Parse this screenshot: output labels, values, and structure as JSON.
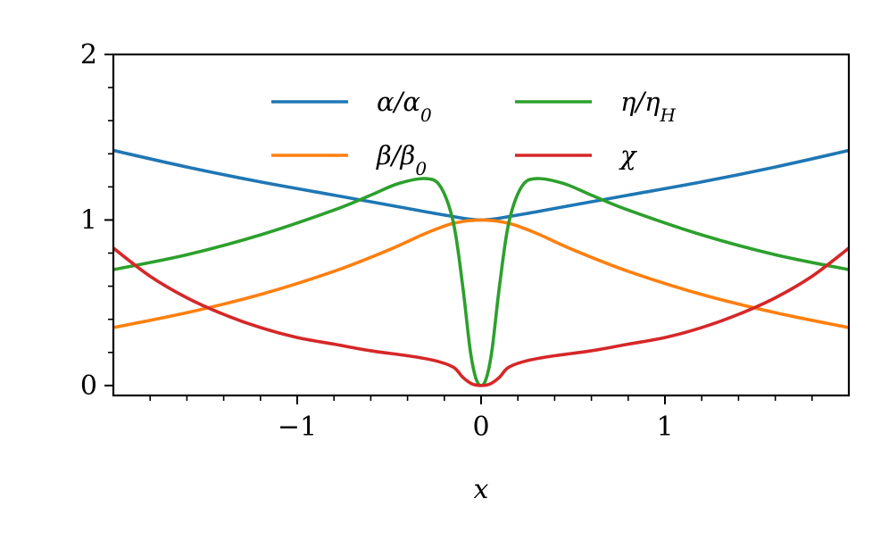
{
  "chart_data": {
    "type": "line",
    "xlabel": "x",
    "ylabel": "",
    "xlim": [
      -2,
      2
    ],
    "ylim": [
      -0.06,
      2
    ],
    "x_ticks": [
      -1,
      0,
      1
    ],
    "x_tick_labels": [
      "−1",
      "0",
      "1"
    ],
    "y_ticks": [
      0,
      1,
      2
    ],
    "y_tick_labels": [
      "0",
      "1",
      "2"
    ],
    "grid": false,
    "legend_position": "upper-center",
    "legend_columns": 2,
    "series": [
      {
        "name": "α/α0",
        "label_html": "α/α<tspan baseline-shift='sub' font-size='20'>0</tspan>",
        "color": "#1f77b4",
        "x": [
          -2.0,
          -1.6,
          -1.2,
          -0.8,
          -0.6,
          -0.4,
          -0.2,
          0.0,
          0.2,
          0.4,
          0.6,
          0.8,
          1.2,
          1.6,
          2.0
        ],
        "y": [
          1.42,
          1.32,
          1.23,
          1.15,
          1.11,
          1.07,
          1.03,
          1.0,
          1.03,
          1.07,
          1.11,
          1.15,
          1.23,
          1.32,
          1.42
        ]
      },
      {
        "name": "β/β0",
        "label_html": "β/β<tspan baseline-shift='sub' font-size='20'>0</tspan>",
        "color": "#ff7f0e",
        "x": [
          -2.0,
          -1.6,
          -1.2,
          -0.8,
          -0.5,
          -0.3,
          -0.15,
          0.0,
          0.15,
          0.3,
          0.5,
          0.8,
          1.2,
          1.6,
          2.0
        ],
        "y": [
          0.35,
          0.44,
          0.55,
          0.69,
          0.82,
          0.92,
          0.98,
          1.0,
          0.98,
          0.92,
          0.82,
          0.69,
          0.55,
          0.44,
          0.35
        ]
      },
      {
        "name": "η/ηH",
        "label_html": "η/η<tspan baseline-shift='sub' font-size='20'>H</tspan>",
        "color": "#2ca02c",
        "x": [
          -2.0,
          -1.6,
          -1.2,
          -0.8,
          -0.6,
          -0.45,
          -0.3,
          -0.22,
          -0.15,
          -0.1,
          -0.06,
          -0.03,
          0.0,
          0.03,
          0.06,
          0.1,
          0.15,
          0.22,
          0.3,
          0.45,
          0.6,
          0.8,
          1.2,
          1.6,
          2.0
        ],
        "y": [
          0.7,
          0.79,
          0.91,
          1.06,
          1.15,
          1.22,
          1.25,
          1.2,
          0.98,
          0.6,
          0.22,
          0.05,
          0.0,
          0.05,
          0.22,
          0.6,
          0.98,
          1.2,
          1.25,
          1.22,
          1.15,
          1.06,
          0.91,
          0.79,
          0.7
        ]
      },
      {
        "name": "χ",
        "label_html": "χ",
        "color": "#d62728",
        "x": [
          -2.0,
          -1.8,
          -1.6,
          -1.4,
          -1.2,
          -1.0,
          -0.8,
          -0.6,
          -0.4,
          -0.25,
          -0.15,
          -0.1,
          -0.05,
          0.0,
          0.05,
          0.1,
          0.15,
          0.25,
          0.4,
          0.6,
          0.8,
          1.0,
          1.2,
          1.4,
          1.6,
          1.8,
          2.0
        ],
        "y": [
          0.83,
          0.66,
          0.53,
          0.43,
          0.35,
          0.29,
          0.25,
          0.21,
          0.18,
          0.15,
          0.11,
          0.05,
          0.01,
          0.0,
          0.01,
          0.05,
          0.11,
          0.15,
          0.18,
          0.21,
          0.25,
          0.29,
          0.35,
          0.43,
          0.53,
          0.66,
          0.83
        ]
      }
    ]
  }
}
